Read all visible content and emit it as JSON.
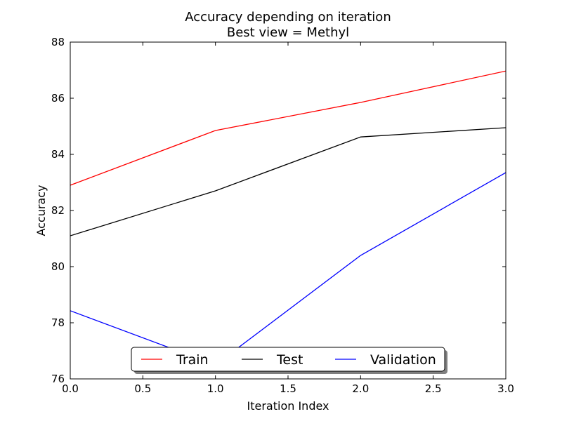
{
  "chart_data": {
    "type": "line",
    "title": "Accuracy depending on iteration",
    "subtitle": "Best view = Methyl",
    "xlabel": "Iteration Index",
    "ylabel": "Accuracy",
    "xlim": [
      0.0,
      3.0
    ],
    "ylim": [
      76,
      88
    ],
    "x": [
      0.0,
      1.0,
      2.0,
      3.0
    ],
    "xticks": [
      "0.0",
      "0.5",
      "1.0",
      "1.5",
      "2.0",
      "2.5",
      "3.0"
    ],
    "yticks": [
      "76",
      "78",
      "80",
      "82",
      "84",
      "86",
      "88"
    ],
    "grid": false,
    "legend_position": "bottom-center",
    "series": [
      {
        "name": "Train",
        "color": "#ff0000",
        "values": [
          82.9,
          84.85,
          85.85,
          86.97
        ]
      },
      {
        "name": "Test",
        "color": "#000000",
        "values": [
          81.1,
          82.7,
          84.62,
          84.95
        ]
      },
      {
        "name": "Validation",
        "color": "#0000ff",
        "values": [
          78.43,
          76.5,
          80.4,
          83.35
        ]
      }
    ]
  }
}
